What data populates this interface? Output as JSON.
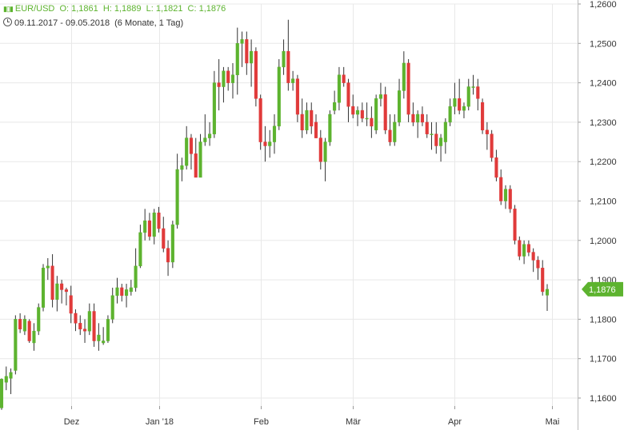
{
  "header": {
    "symbol": "EUR/USD",
    "open": "O: 1,1861",
    "high": "H: 1,1889",
    "low": "L: 1,1821",
    "close": "C: 1,1876",
    "date_range": "09.11.2017 - 09.05.2018",
    "period": "(6 Monate, 1 Tag)",
    "icons": [
      "candlestick-icon",
      "clock-icon"
    ]
  },
  "colors": {
    "up": "#5db32f",
    "down": "#e03a3a",
    "wick": "#333333",
    "grid": "#e8e8e8",
    "badge": "#5db32f"
  },
  "chart_data": {
    "type": "candlestick",
    "x_labels": [
      "Dez",
      "Jan '18",
      "Feb",
      "Mär",
      "Apr",
      "Mai"
    ],
    "y_ticks": [
      "1,1600",
      "1,1700",
      "1,1800",
      "1,1900",
      "1,2000",
      "1,2100",
      "1,2200",
      "1,2300",
      "1,2400",
      "1,2500",
      "1,2600"
    ],
    "ylim": [
      1.1575,
      1.2615
    ],
    "last_price_label": "1,1876",
    "last_price": 1.1876,
    "grid": true,
    "candles": [
      [
        1.1575,
        1.165,
        1.157,
        1.1648
      ],
      [
        1.164,
        1.168,
        1.162,
        1.1655
      ],
      [
        1.165,
        1.1675,
        1.161,
        1.1665
      ],
      [
        1.167,
        1.181,
        1.166,
        1.18
      ],
      [
        1.18,
        1.1815,
        1.1765,
        1.1775
      ],
      [
        1.177,
        1.181,
        1.176,
        1.18
      ],
      [
        1.1795,
        1.18,
        1.174,
        1.1745
      ],
      [
        1.174,
        1.179,
        1.172,
        1.177
      ],
      [
        1.177,
        1.184,
        1.176,
        1.183
      ],
      [
        1.183,
        1.194,
        1.182,
        1.193
      ],
      [
        1.193,
        1.1955,
        1.19,
        1.1935
      ],
      [
        1.1935,
        1.1965,
        1.183,
        1.185
      ],
      [
        1.185,
        1.191,
        1.182,
        1.189
      ],
      [
        1.189,
        1.19,
        1.184,
        1.1875
      ],
      [
        1.1875,
        1.188,
        1.1835,
        1.187
      ],
      [
        1.186,
        1.1885,
        1.179,
        1.1815
      ],
      [
        1.1815,
        1.1825,
        1.177,
        1.179
      ],
      [
        1.179,
        1.181,
        1.176,
        1.1775
      ],
      [
        1.1775,
        1.18,
        1.174,
        1.177
      ],
      [
        1.177,
        1.184,
        1.176,
        1.182
      ],
      [
        1.182,
        1.184,
        1.173,
        1.1745
      ],
      [
        1.1745,
        1.179,
        1.172,
        1.176
      ],
      [
        1.174,
        1.178,
        1.1735,
        1.1745
      ],
      [
        1.1745,
        1.181,
        1.174,
        1.18
      ],
      [
        1.18,
        1.188,
        1.179,
        1.186
      ],
      [
        1.186,
        1.1905,
        1.184,
        1.188
      ],
      [
        1.188,
        1.189,
        1.1845,
        1.186
      ],
      [
        1.186,
        1.189,
        1.183,
        1.1875
      ],
      [
        1.187,
        1.19,
        1.186,
        1.188
      ],
      [
        1.188,
        1.198,
        1.187,
        1.1935
      ],
      [
        1.1935,
        1.204,
        1.193,
        1.202
      ],
      [
        1.202,
        1.208,
        1.2,
        1.205
      ],
      [
        1.205,
        1.207,
        1.2,
        1.201
      ],
      [
        1.201,
        1.208,
        1.199,
        1.207
      ],
      [
        1.207,
        1.2085,
        1.202,
        1.203
      ],
      [
        1.203,
        1.206,
        1.197,
        1.198
      ],
      [
        1.198,
        1.2,
        1.191,
        1.1945
      ],
      [
        1.1945,
        1.205,
        1.193,
        1.204
      ],
      [
        1.204,
        1.222,
        1.203,
        1.218
      ],
      [
        1.218,
        1.221,
        1.215,
        1.219
      ],
      [
        1.219,
        1.229,
        1.218,
        1.226
      ],
      [
        1.226,
        1.227,
        1.218,
        1.222
      ],
      [
        1.222,
        1.226,
        1.216,
        1.216
      ],
      [
        1.216,
        1.227,
        1.216,
        1.225
      ],
      [
        1.225,
        1.232,
        1.224,
        1.226
      ],
      [
        1.226,
        1.23,
        1.224,
        1.227
      ],
      [
        1.227,
        1.243,
        1.226,
        1.24
      ],
      [
        1.24,
        1.246,
        1.233,
        1.239
      ],
      [
        1.239,
        1.244,
        1.235,
        1.243
      ],
      [
        1.243,
        1.244,
        1.238,
        1.24
      ],
      [
        1.24,
        1.245,
        1.236,
        1.242
      ],
      [
        1.242,
        1.254,
        1.237,
        1.25
      ],
      [
        1.25,
        1.253,
        1.244,
        1.251
      ],
      [
        1.251,
        1.253,
        1.242,
        1.245
      ],
      [
        1.245,
        1.251,
        1.239,
        1.248
      ],
      [
        1.248,
        1.249,
        1.234,
        1.236
      ],
      [
        1.236,
        1.237,
        1.223,
        1.225
      ],
      [
        1.225,
        1.229,
        1.22,
        1.224
      ],
      [
        1.224,
        1.228,
        1.221,
        1.225
      ],
      [
        1.225,
        1.232,
        1.222,
        1.229
      ],
      [
        1.229,
        1.246,
        1.228,
        1.244
      ],
      [
        1.244,
        1.251,
        1.242,
        1.248
      ],
      [
        1.248,
        1.256,
        1.238,
        1.24
      ],
      [
        1.24,
        1.243,
        1.238,
        1.241
      ],
      [
        1.241,
        1.242,
        1.23,
        1.232
      ],
      [
        1.232,
        1.236,
        1.226,
        1.228
      ],
      [
        1.228,
        1.235,
        1.227,
        1.233
      ],
      [
        1.233,
        1.235,
        1.227,
        1.229
      ],
      [
        1.23,
        1.232,
        1.226,
        1.226
      ],
      [
        1.226,
        1.228,
        1.218,
        1.22
      ],
      [
        1.22,
        1.226,
        1.215,
        1.225
      ],
      [
        1.225,
        1.233,
        1.224,
        1.232
      ],
      [
        1.233,
        1.238,
        1.232,
        1.235
      ],
      [
        1.235,
        1.244,
        1.233,
        1.242
      ],
      [
        1.242,
        1.244,
        1.239,
        1.24
      ],
      [
        1.24,
        1.241,
        1.23,
        1.234
      ],
      [
        1.234,
        1.237,
        1.231,
        1.232
      ],
      [
        1.232,
        1.234,
        1.229,
        1.233
      ],
      [
        1.233,
        1.235,
        1.23,
        1.231
      ],
      [
        1.231,
        1.235,
        1.229,
        1.231
      ],
      [
        1.231,
        1.234,
        1.226,
        1.229
      ],
      [
        1.228,
        1.237,
        1.227,
        1.236
      ],
      [
        1.236,
        1.24,
        1.234,
        1.237
      ],
      [
        1.237,
        1.239,
        1.227,
        1.228
      ],
      [
        1.228,
        1.232,
        1.224,
        1.225
      ],
      [
        1.225,
        1.232,
        1.224,
        1.23
      ],
      [
        1.23,
        1.241,
        1.229,
        1.238
      ],
      [
        1.238,
        1.248,
        1.236,
        1.245
      ],
      [
        1.245,
        1.246,
        1.23,
        1.232
      ],
      [
        1.232,
        1.235,
        1.229,
        1.23
      ],
      [
        1.23,
        1.233,
        1.226,
        1.232
      ],
      [
        1.232,
        1.234,
        1.229,
        1.23
      ],
      [
        1.23,
        1.232,
        1.226,
        1.227
      ],
      [
        1.227,
        1.23,
        1.223,
        1.227
      ],
      [
        1.227,
        1.23,
        1.222,
        1.224
      ],
      [
        1.224,
        1.227,
        1.22,
        1.226
      ],
      [
        1.225,
        1.231,
        1.222,
        1.23
      ],
      [
        1.23,
        1.236,
        1.229,
        1.234
      ],
      [
        1.234,
        1.24,
        1.232,
        1.236
      ],
      [
        1.236,
        1.241,
        1.232,
        1.233
      ],
      [
        1.233,
        1.235,
        1.231,
        1.234
      ],
      [
        1.234,
        1.241,
        1.233,
        1.239
      ],
      [
        1.239,
        1.242,
        1.237,
        1.239
      ],
      [
        1.239,
        1.241,
        1.233,
        1.236
      ],
      [
        1.235,
        1.236,
        1.227,
        1.228
      ],
      [
        1.228,
        1.23,
        1.223,
        1.227
      ],
      [
        1.227,
        1.228,
        1.22,
        1.221
      ],
      [
        1.221,
        1.223,
        1.215,
        1.216
      ],
      [
        1.216,
        1.218,
        1.209,
        1.21
      ],
      [
        1.21,
        1.214,
        1.208,
        1.213
      ],
      [
        1.213,
        1.214,
        1.207,
        1.208
      ],
      [
        1.208,
        1.209,
        1.199,
        1.2
      ],
      [
        1.2,
        1.201,
        1.195,
        1.196
      ],
      [
        1.196,
        1.2,
        1.194,
        1.199
      ],
      [
        1.199,
        1.2,
        1.196,
        1.197
      ],
      [
        1.197,
        1.198,
        1.192,
        1.195
      ],
      [
        1.195,
        1.196,
        1.19,
        1.193
      ],
      [
        1.193,
        1.195,
        1.186,
        1.187
      ],
      [
        1.1861,
        1.1889,
        1.1821,
        1.1876
      ]
    ]
  }
}
